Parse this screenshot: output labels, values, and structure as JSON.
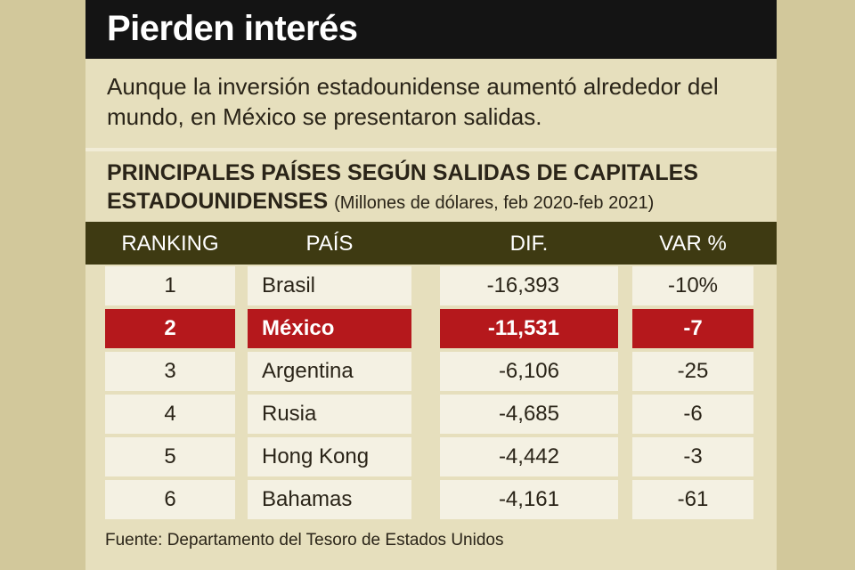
{
  "header": {
    "title": "Pierden interés",
    "subtitle": "Aunque la inversión estadounidense aumentó alrededor del mundo, en México se presentaron salidas."
  },
  "table": {
    "title": "PRINCIPALES PAÍSES SEGÚN SALIDAS DE CAPITALES ESTADOUNIDENSES",
    "units": "(Millones de dólares, feb 2020-feb 2021)",
    "columns": {
      "ranking": "RANKING",
      "country": "PAÍS",
      "diff": "DIF.",
      "var": "VAR %"
    },
    "rows": [
      {
        "ranking": "1",
        "country": "Brasil",
        "diff": "-16,393",
        "var": "-10%",
        "highlight": false
      },
      {
        "ranking": "2",
        "country": "México",
        "diff": "-11,531",
        "var": "-7",
        "highlight": true
      },
      {
        "ranking": "3",
        "country": "Argentina",
        "diff": "-6,106",
        "var": "-25",
        "highlight": false
      },
      {
        "ranking": "4",
        "country": "Rusia",
        "diff": "-4,685",
        "var": "-6",
        "highlight": false
      },
      {
        "ranking": "5",
        "country": "Hong Kong",
        "diff": "-4,442",
        "var": "-3",
        "highlight": false
      },
      {
        "ranking": "6",
        "country": "Bahamas",
        "diff": "-4,161",
        "var": "-61",
        "highlight": false
      }
    ]
  },
  "source": "Fuente: Departamento del Tesoro de Estados Unidos",
  "colors": {
    "highlight": "#b5181c",
    "header_bar": "#3e3a12",
    "title_bar": "#141414",
    "background": "#e6dfbd"
  }
}
